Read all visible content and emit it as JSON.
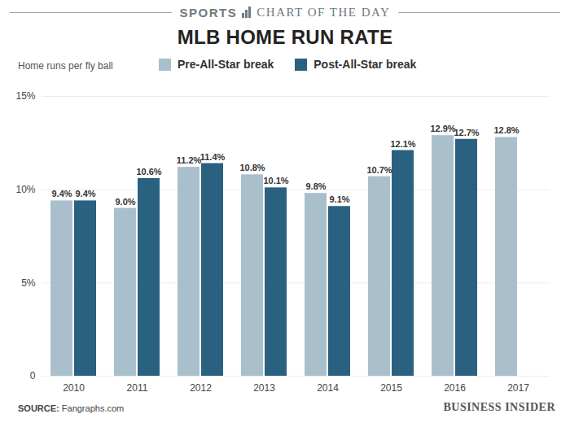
{
  "chart_data": {
    "type": "bar",
    "header_section": "SPORTS",
    "header_label": "CHART OF THE DAY",
    "title": "MLB HOME RUN RATE",
    "ylabel": "Home runs per fly ball",
    "categories": [
      "2010",
      "2011",
      "2012",
      "2013",
      "2014",
      "2015",
      "2016",
      "2017"
    ],
    "series": [
      {
        "name": "Pre-All-Star break",
        "color": "#a9c0cc",
        "values": [
          9.4,
          9.0,
          11.2,
          10.8,
          9.8,
          10.7,
          12.9,
          12.8
        ],
        "value_labels": [
          "9.4%",
          "9.0%",
          "11.2%",
          "10.8%",
          "9.8%",
          "10.7%",
          "12.9%",
          "12.8%"
        ]
      },
      {
        "name": "Post-All-Star break",
        "color": "#2b6180",
        "values": [
          9.4,
          10.6,
          11.4,
          10.1,
          9.1,
          12.1,
          12.7,
          null
        ],
        "value_labels": [
          "9.4%",
          "10.6%",
          "11.4%",
          "10.1%",
          "9.1%",
          "12.1%",
          "12.7%",
          null
        ]
      }
    ],
    "ylim": [
      0,
      15
    ],
    "yticks": [
      0,
      {
        "value": 5,
        "label": "5%"
      },
      {
        "value": 10,
        "label": "10%"
      },
      {
        "value": 15,
        "label": "15%"
      }
    ],
    "grid": true,
    "legend": "top",
    "data_labels": true,
    "source_label": "SOURCE:",
    "source": "Fangraphs.com",
    "publisher": "BUSINESS INSIDER"
  }
}
